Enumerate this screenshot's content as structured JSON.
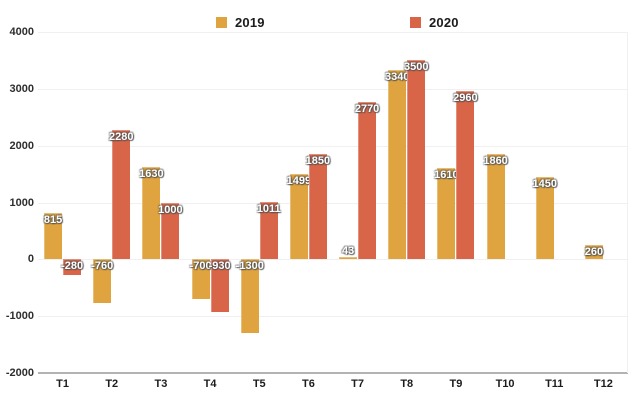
{
  "chart_data": {
    "type": "bar",
    "title": "",
    "xlabel": "",
    "ylabel": "",
    "categories": [
      "T1",
      "T2",
      "T3",
      "T4",
      "T5",
      "T6",
      "T7",
      "T8",
      "T9",
      "T10",
      "T11",
      "T12"
    ],
    "series": [
      {
        "name": "2019",
        "color": "#DFA43F",
        "values": [
          815,
          -760,
          1630,
          -700,
          -1300,
          1499,
          43,
          3340,
          1610,
          1860,
          1450,
          260
        ]
      },
      {
        "name": "2020",
        "color": "#D96548",
        "values": [
          -280,
          2280,
          1000,
          -930,
          1011,
          1850,
          2770,
          3500,
          2960,
          null,
          null,
          null
        ]
      }
    ],
    "ylim": [
      -2000,
      4000
    ],
    "ytick_step": 1000,
    "ytick_labels": [
      "4000",
      "3000",
      "2000",
      "1000",
      "0",
      "-1000",
      "-2000"
    ],
    "grid": true,
    "legend_position": "top",
    "value_labels": true,
    "colors": {
      "grid": "#f0f0f0",
      "axis": "#b3b3b3",
      "tick_text": "#2e2e2e",
      "value_text": "#ffffff"
    }
  }
}
